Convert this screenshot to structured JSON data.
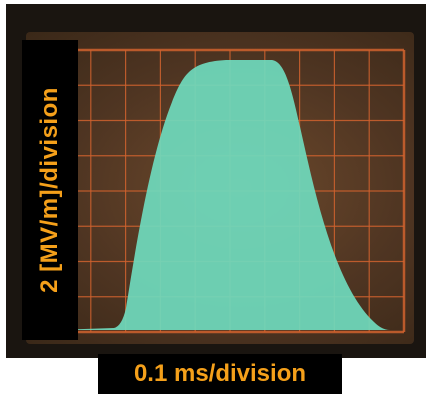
{
  "labels": {
    "y_axis": "2 [MV/m]/division",
    "x_axis": "0.1 ms/division"
  },
  "colors": {
    "trace": "#6fd9bc",
    "grid": "#d0622e",
    "label_text": "#f5a01a",
    "label_background": "#000000"
  }
}
